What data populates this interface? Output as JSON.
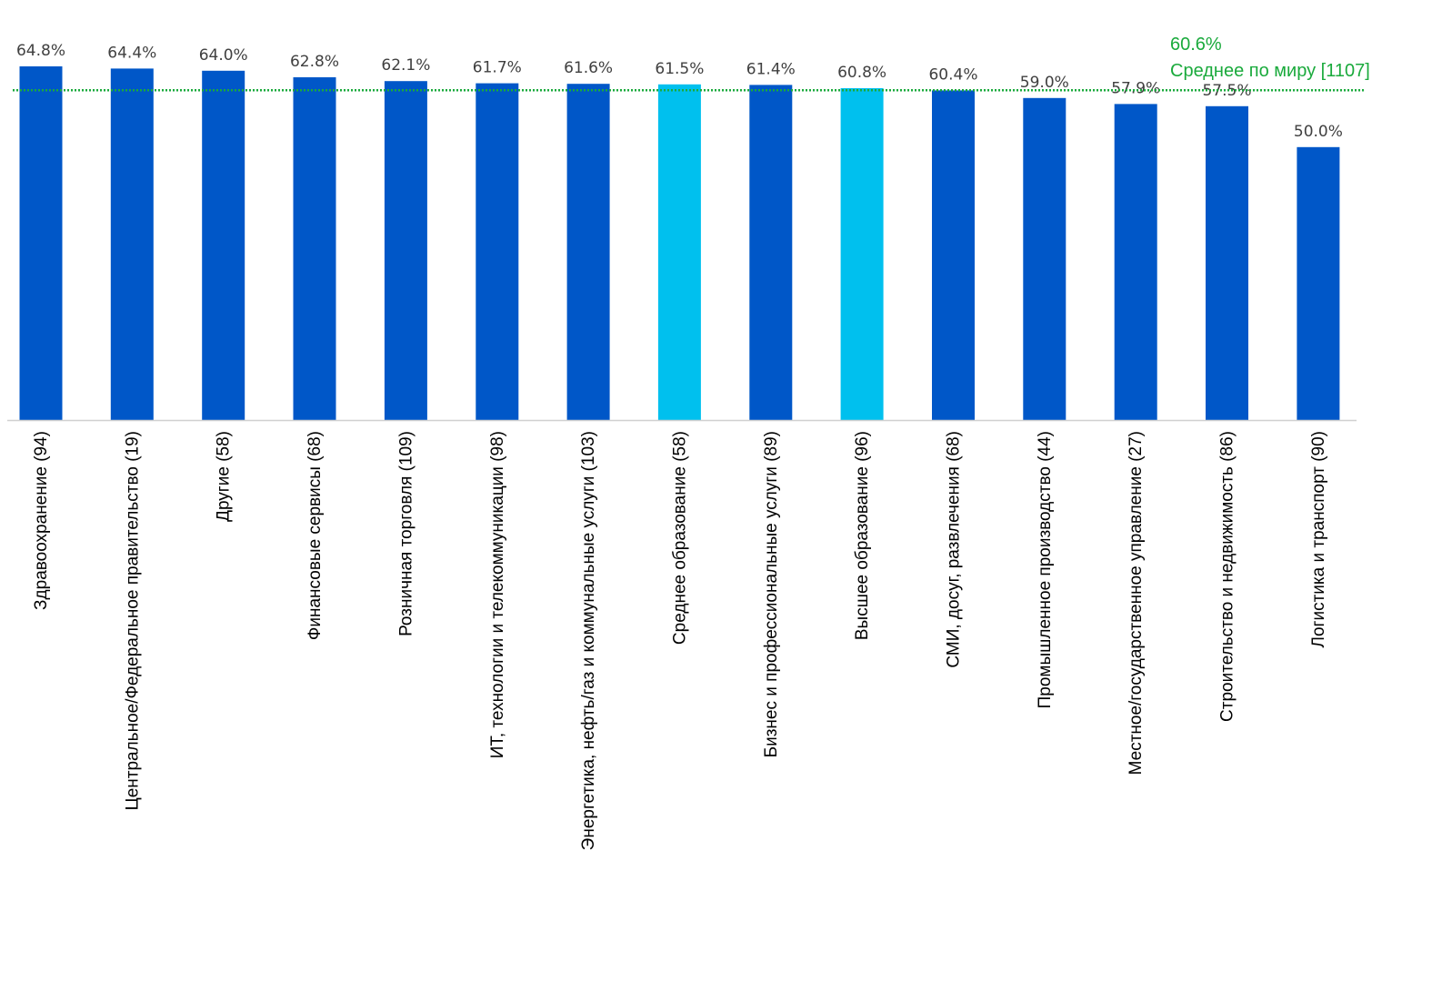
{
  "chart_data": {
    "type": "bar",
    "categories": [
      "Здравоохранение (94)",
      "Центральное/Федеральное правительство (19)",
      "Другие (58)",
      "Финансовые сервисы (68)",
      "Розничная торговля (109)",
      "ИТ, технологии и телекоммуникации (98)",
      "Энергетика, нефть/газ и коммунальные услуги (103)",
      "Среднее образование (58)",
      "Бизнес и профессиональные услуги  (89)",
      "Высшее образование  (96)",
      "СМИ, досуг, развлечения (68)",
      "Промышленное производство (44)",
      "Местное/государственное управление  (27)",
      "Строительство и недвижимость (86)",
      "Логистика и транспорт (90)"
    ],
    "values": [
      64.8,
      64.4,
      64.0,
      62.8,
      62.1,
      61.7,
      61.6,
      61.5,
      61.4,
      60.8,
      60.4,
      59.0,
      57.9,
      57.5,
      50.0
    ],
    "value_labels": [
      "64.8%",
      "64.4%",
      "64.0%",
      "62.8%",
      "62.1%",
      "61.7%",
      "61.6%",
      "61.5%",
      "61.4%",
      "60.8%",
      "60.4%",
      "59.0%",
      "57.9%",
      "57.5%",
      "50.0%"
    ],
    "highlighted": [
      false,
      false,
      false,
      false,
      false,
      false,
      false,
      true,
      false,
      true,
      false,
      false,
      false,
      false,
      false
    ],
    "reference_line": {
      "value": 60.6,
      "value_label": "60.6%",
      "label": "Среднее по миру [1107]",
      "color": "#1aaa3c",
      "style": "dotted"
    },
    "colors": {
      "bar": "#0057c8",
      "bar_highlight": "#00c0ee",
      "axis": "#d0d0d0"
    },
    "ylim": [
      0,
      64.8
    ],
    "grid": false,
    "title": "",
    "xlabel": "",
    "ylabel": ""
  }
}
